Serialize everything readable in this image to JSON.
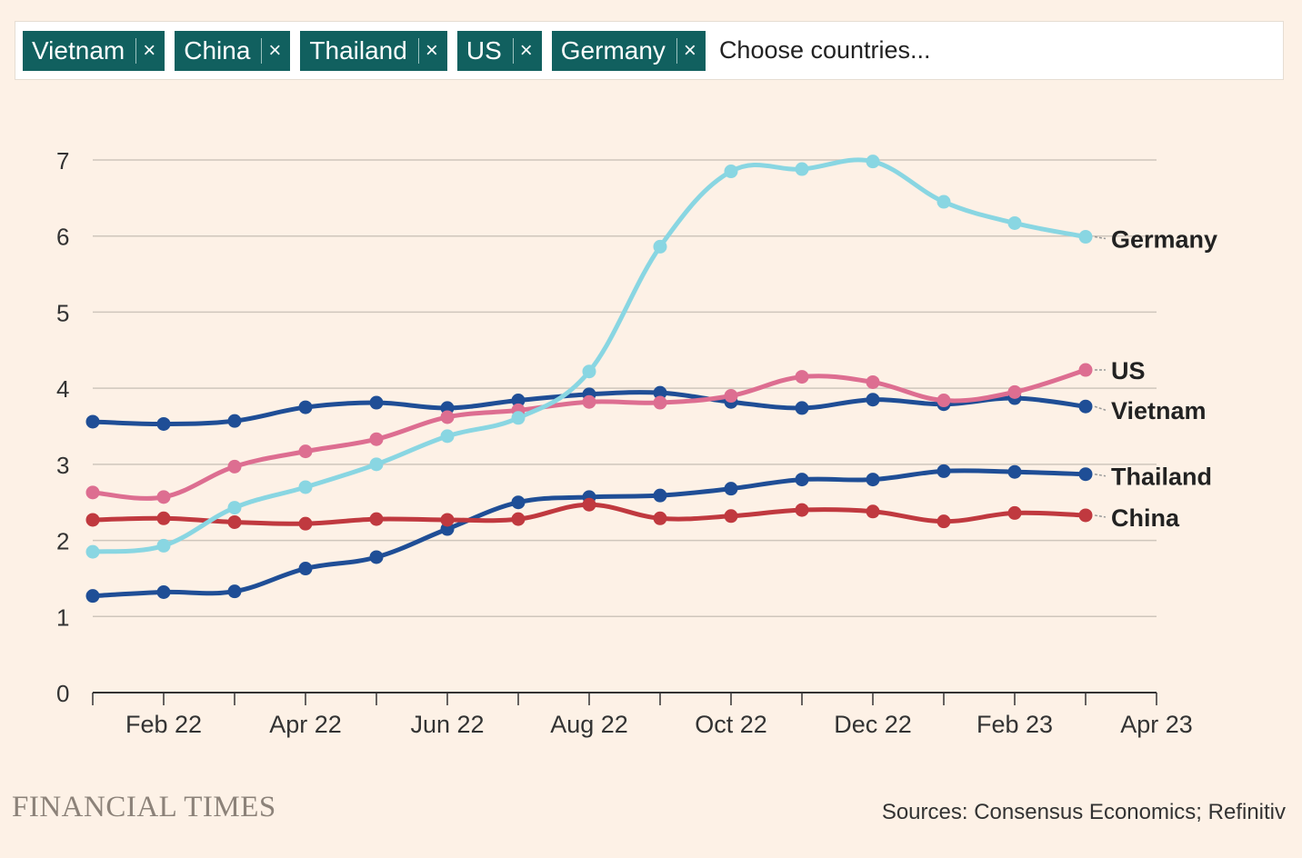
{
  "selector": {
    "chips": [
      {
        "label": "Vietnam"
      },
      {
        "label": "China"
      },
      {
        "label": "Thailand"
      },
      {
        "label": "US"
      },
      {
        "label": "Germany"
      }
    ],
    "remove_symbol": "×",
    "placeholder": "Choose countries..."
  },
  "footer": {
    "logo": "FINANCIAL TIMES",
    "source": "Sources: Consensus Economics; Refinitiv"
  },
  "chart_data": {
    "type": "line",
    "title": "",
    "xlabel": "",
    "ylabel": "",
    "ylim": [
      0,
      7
    ],
    "yticks": [
      0,
      1,
      2,
      3,
      4,
      5,
      6,
      7
    ],
    "x_range": [
      0,
      15
    ],
    "x_tick_labels": [
      {
        "x": 1,
        "label": "Feb 22"
      },
      {
        "x": 3,
        "label": "Apr 22"
      },
      {
        "x": 5,
        "label": "Jun 22"
      },
      {
        "x": 7,
        "label": "Aug 22"
      },
      {
        "x": 9,
        "label": "Oct 22"
      },
      {
        "x": 11,
        "label": "Dec 22"
      },
      {
        "x": 13,
        "label": "Feb 23"
      },
      {
        "x": 15,
        "label": "Apr 23"
      }
    ],
    "minor_ticks": [
      0,
      2,
      4,
      6,
      8,
      10,
      12,
      14
    ],
    "x": [
      0,
      1,
      2,
      3,
      4,
      5,
      6,
      7,
      8,
      9,
      10,
      11,
      12,
      13,
      14
    ],
    "series": [
      {
        "name": "Thailand",
        "color": "#1f4e96",
        "values": [
          1.27,
          1.32,
          1.33,
          1.63,
          1.78,
          2.15,
          2.5,
          2.57,
          2.59,
          2.68,
          2.8,
          2.8,
          2.91,
          2.9,
          2.87
        ]
      },
      {
        "name": "China",
        "color": "#c0393f",
        "values": [
          2.27,
          2.29,
          2.24,
          2.22,
          2.28,
          2.27,
          2.28,
          2.47,
          2.29,
          2.32,
          2.4,
          2.38,
          2.25,
          2.36,
          2.33
        ]
      },
      {
        "name": "Vietnam",
        "color": "#1f4e96",
        "values": [
          3.56,
          3.53,
          3.57,
          3.75,
          3.81,
          3.74,
          3.84,
          3.92,
          3.94,
          3.82,
          3.74,
          3.85,
          3.79,
          3.87,
          3.76
        ]
      },
      {
        "name": "US",
        "color": "#dd6e91",
        "values": [
          2.63,
          2.57,
          2.97,
          3.17,
          3.33,
          3.62,
          3.71,
          3.82,
          3.81,
          3.9,
          4.15,
          4.08,
          3.84,
          3.95,
          4.24
        ]
      },
      {
        "name": "Germany",
        "color": "#89d6e2",
        "values": [
          1.85,
          1.93,
          2.43,
          2.7,
          3.0,
          3.37,
          3.61,
          4.22,
          5.86,
          6.85,
          6.88,
          6.98,
          6.45,
          6.17,
          5.99
        ]
      }
    ],
    "end_labels": [
      {
        "series": "Germany",
        "label": "Germany"
      },
      {
        "series": "US",
        "label": "US"
      },
      {
        "series": "Vietnam",
        "label": "Vietnam"
      },
      {
        "series": "Thailand",
        "label": "Thailand"
      },
      {
        "series": "China",
        "label": "China"
      }
    ]
  }
}
